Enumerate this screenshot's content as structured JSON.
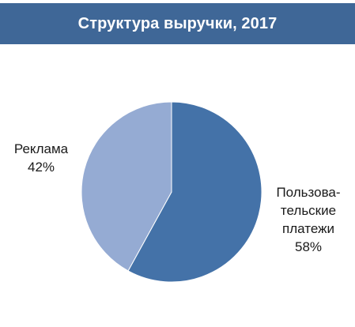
{
  "chart_data": {
    "type": "pie",
    "title": "Структура выручки, 2017",
    "slices": [
      {
        "name": "Пользовательские платежи",
        "label_lines": [
          "Пользова-",
          "тельские",
          "платежи"
        ],
        "value": 58,
        "value_label": "58%",
        "color": "#4472a8"
      },
      {
        "name": "Реклама",
        "label_lines": [
          "Реклама"
        ],
        "value": 42,
        "value_label": "42%",
        "color": "#95abd3"
      }
    ]
  },
  "colors": {
    "title_bar": "#3f6797",
    "title_text": "#ffffff"
  }
}
